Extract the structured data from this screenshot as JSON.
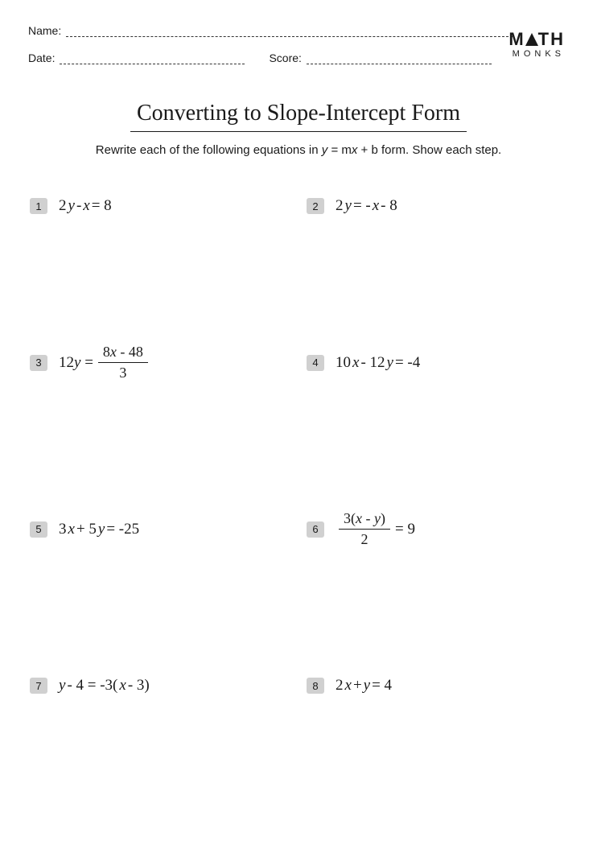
{
  "header": {
    "name_label": "Name:",
    "date_label": "Date:",
    "score_label": "Score:"
  },
  "logo": {
    "line1_left": "M",
    "line1_right": "TH",
    "line2": "MONKS"
  },
  "title": "Converting to Slope-Intercept Form",
  "instructions": {
    "pre": "Rewrite each of the following equations in ",
    "var_y": "y",
    "eq": " = m",
    "var_x": "x",
    "plus_b": " + b form. Show each step."
  },
  "problems": [
    {
      "num": "1",
      "html": "2<i>y</i> - <i>x</i> = 8"
    },
    {
      "num": "2",
      "html": "2<i>y</i> = - <i>x</i> - 8"
    },
    {
      "num": "3",
      "html": "12<i>y</i> = ",
      "frac_num": "8<i>x</i> - 48",
      "frac_den": "3"
    },
    {
      "num": "4",
      "html": "10<i>x</i> - 12<i>y</i> = -4"
    },
    {
      "num": "5",
      "html": "3<i>x</i> + 5<i>y</i> = -25"
    },
    {
      "num": "6",
      "frac_num": "3(<i>x</i> - <i>y</i>)",
      "frac_den": "2",
      "tail": " = 9"
    },
    {
      "num": "7",
      "html": "<i>y</i> - 4 = -3(<i>x</i> - 3)"
    },
    {
      "num": "8",
      "html": "2<i>x</i> + <i>y</i> = 4"
    }
  ]
}
